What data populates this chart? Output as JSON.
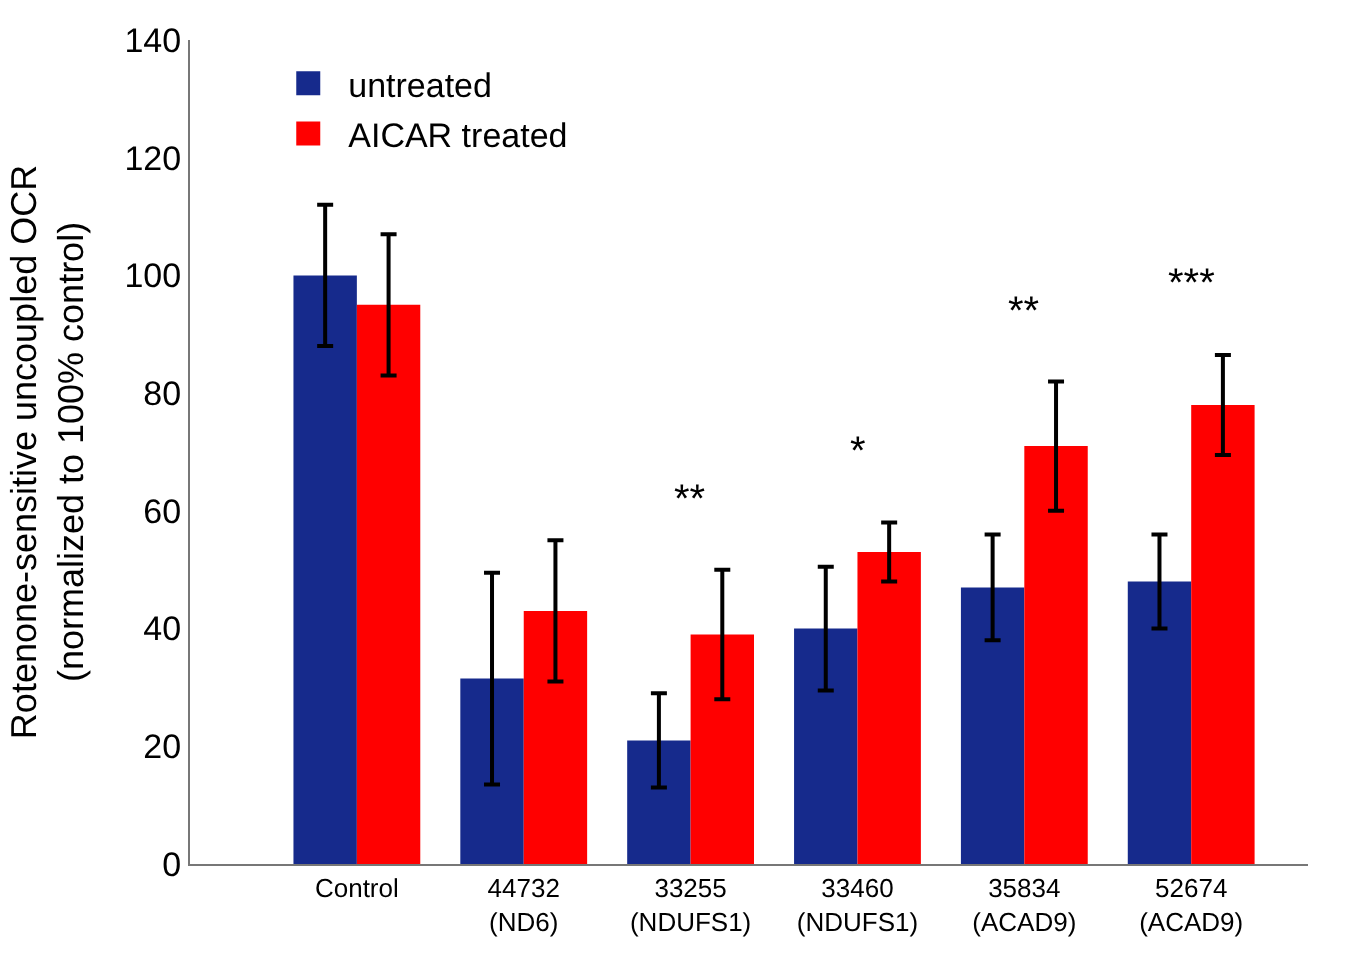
{
  "chart_data": {
    "type": "bar",
    "ylabel": "Rotenone-sensitive uncoupled OCR\n(normalized to 100% control)",
    "categories": [
      "Control",
      "44732\n(ND6)",
      "33255\n(NDUFS1)",
      "33460\n(NDUFS1)",
      "35834\n(ACAD9)",
      "52674\n(ACAD9)"
    ],
    "series": [
      {
        "name": "untreated",
        "color": "#162a8c",
        "values": [
          100,
          31.5,
          21,
          40,
          47,
          48
        ],
        "errors": [
          12,
          18,
          8,
          10.5,
          9,
          8
        ]
      },
      {
        "name": "AICAR treated",
        "color": "#ff0000",
        "values": [
          95,
          43,
          39,
          53,
          71,
          78
        ],
        "errors": [
          12,
          12,
          11,
          5,
          11,
          8.5
        ]
      }
    ],
    "ylim": [
      0,
      140
    ],
    "yticks": [
      0,
      20,
      40,
      60,
      80,
      100,
      120,
      140
    ],
    "annotations": [
      "**",
      "*",
      "**",
      "***"
    ],
    "legend": "top left"
  }
}
